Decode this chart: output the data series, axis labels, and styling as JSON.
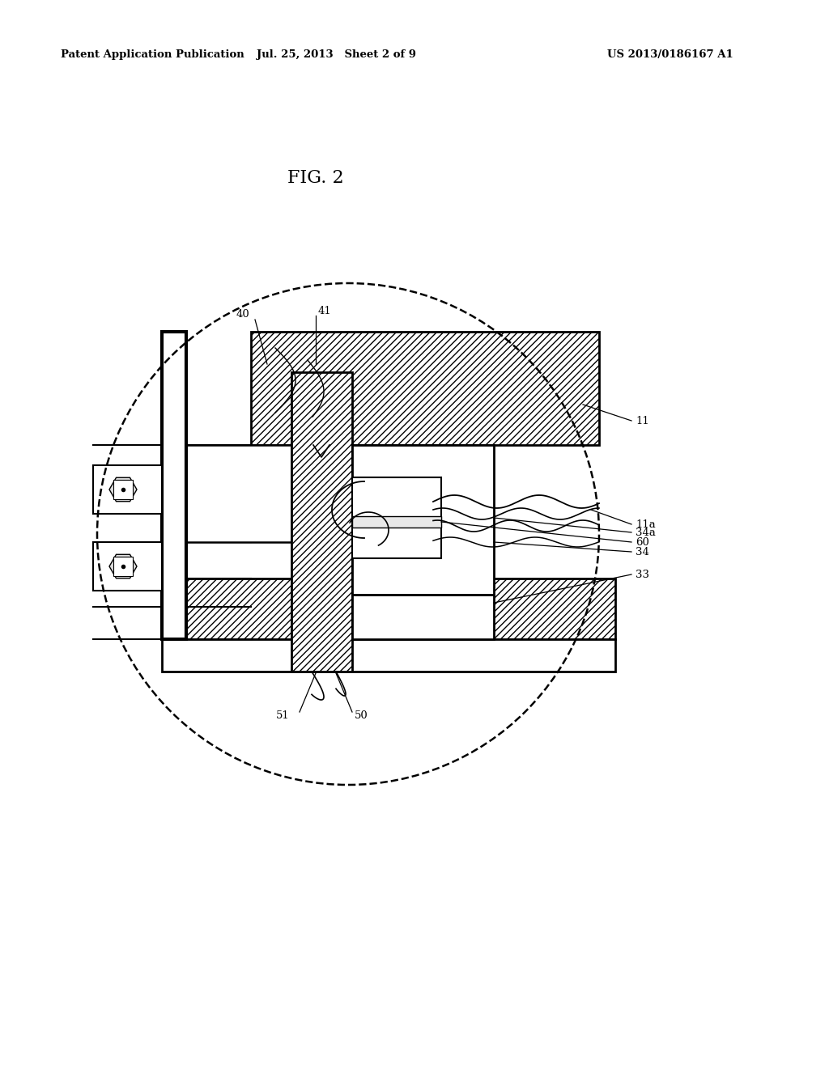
{
  "title": "FIG. 2",
  "header_left": "Patent Application Publication",
  "header_center": "Jul. 25, 2013   Sheet 2 of 9",
  "header_right": "US 2013/0186167 A1",
  "bg_color": "#ffffff",
  "line_color": "#000000"
}
